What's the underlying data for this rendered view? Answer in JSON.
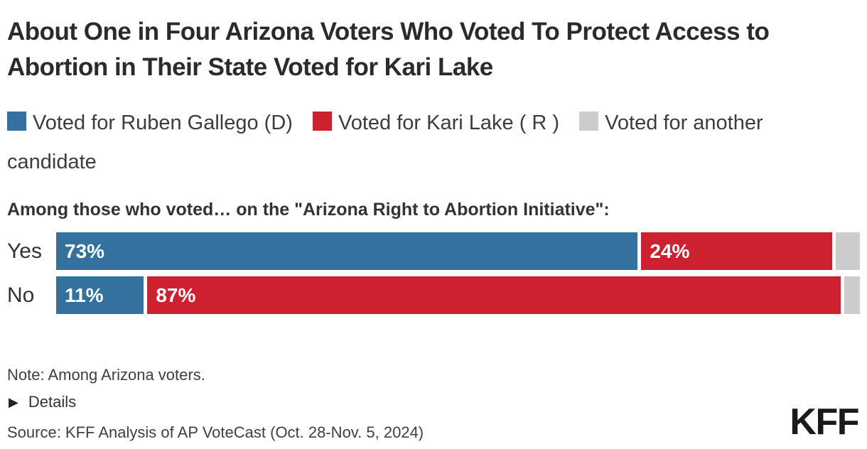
{
  "title": "About One in Four Arizona Voters Who Voted To Protect Access to Abortion in Their State Voted for Kari Lake",
  "legend": [
    {
      "label": "Voted for Ruben Gallego (D)",
      "color": "#35719F"
    },
    {
      "label": "Voted for Kari Lake ( R )",
      "color": "#CE212F"
    },
    {
      "label": "Voted for another candidate",
      "color": "#CCCCCC"
    }
  ],
  "subtitle": "Among those who voted… on the \"Arizona Right to Abortion Initiative\":",
  "chart_data": {
    "type": "bar",
    "orientation": "horizontal",
    "stacked": true,
    "categories": [
      "Yes",
      "No"
    ],
    "series": [
      {
        "name": "Voted for Ruben Gallego (D)",
        "color": "#35719F",
        "values": [
          73,
          11
        ]
      },
      {
        "name": "Voted for Kari Lake ( R )",
        "color": "#CE212F",
        "values": [
          24,
          87
        ]
      },
      {
        "name": "Voted for another candidate",
        "color": "#CCCCCC",
        "values": [
          3,
          2
        ]
      }
    ],
    "value_labels": [
      [
        "73%",
        "24%",
        ""
      ],
      [
        "11%",
        "87%",
        ""
      ]
    ],
    "xlim": [
      0,
      100
    ],
    "grid": false,
    "legend_position": "top",
    "bar_label_color": "#ffffff"
  },
  "footer": {
    "note": "Note: Among Arizona voters.",
    "details_icon": "right-triangle-icon",
    "details_glyph": "▶",
    "details_label": "Details",
    "source": "Source: KFF Analysis of AP VoteCast (Oct. 28-Nov. 5, 2024)",
    "logo_text": "KFF"
  }
}
